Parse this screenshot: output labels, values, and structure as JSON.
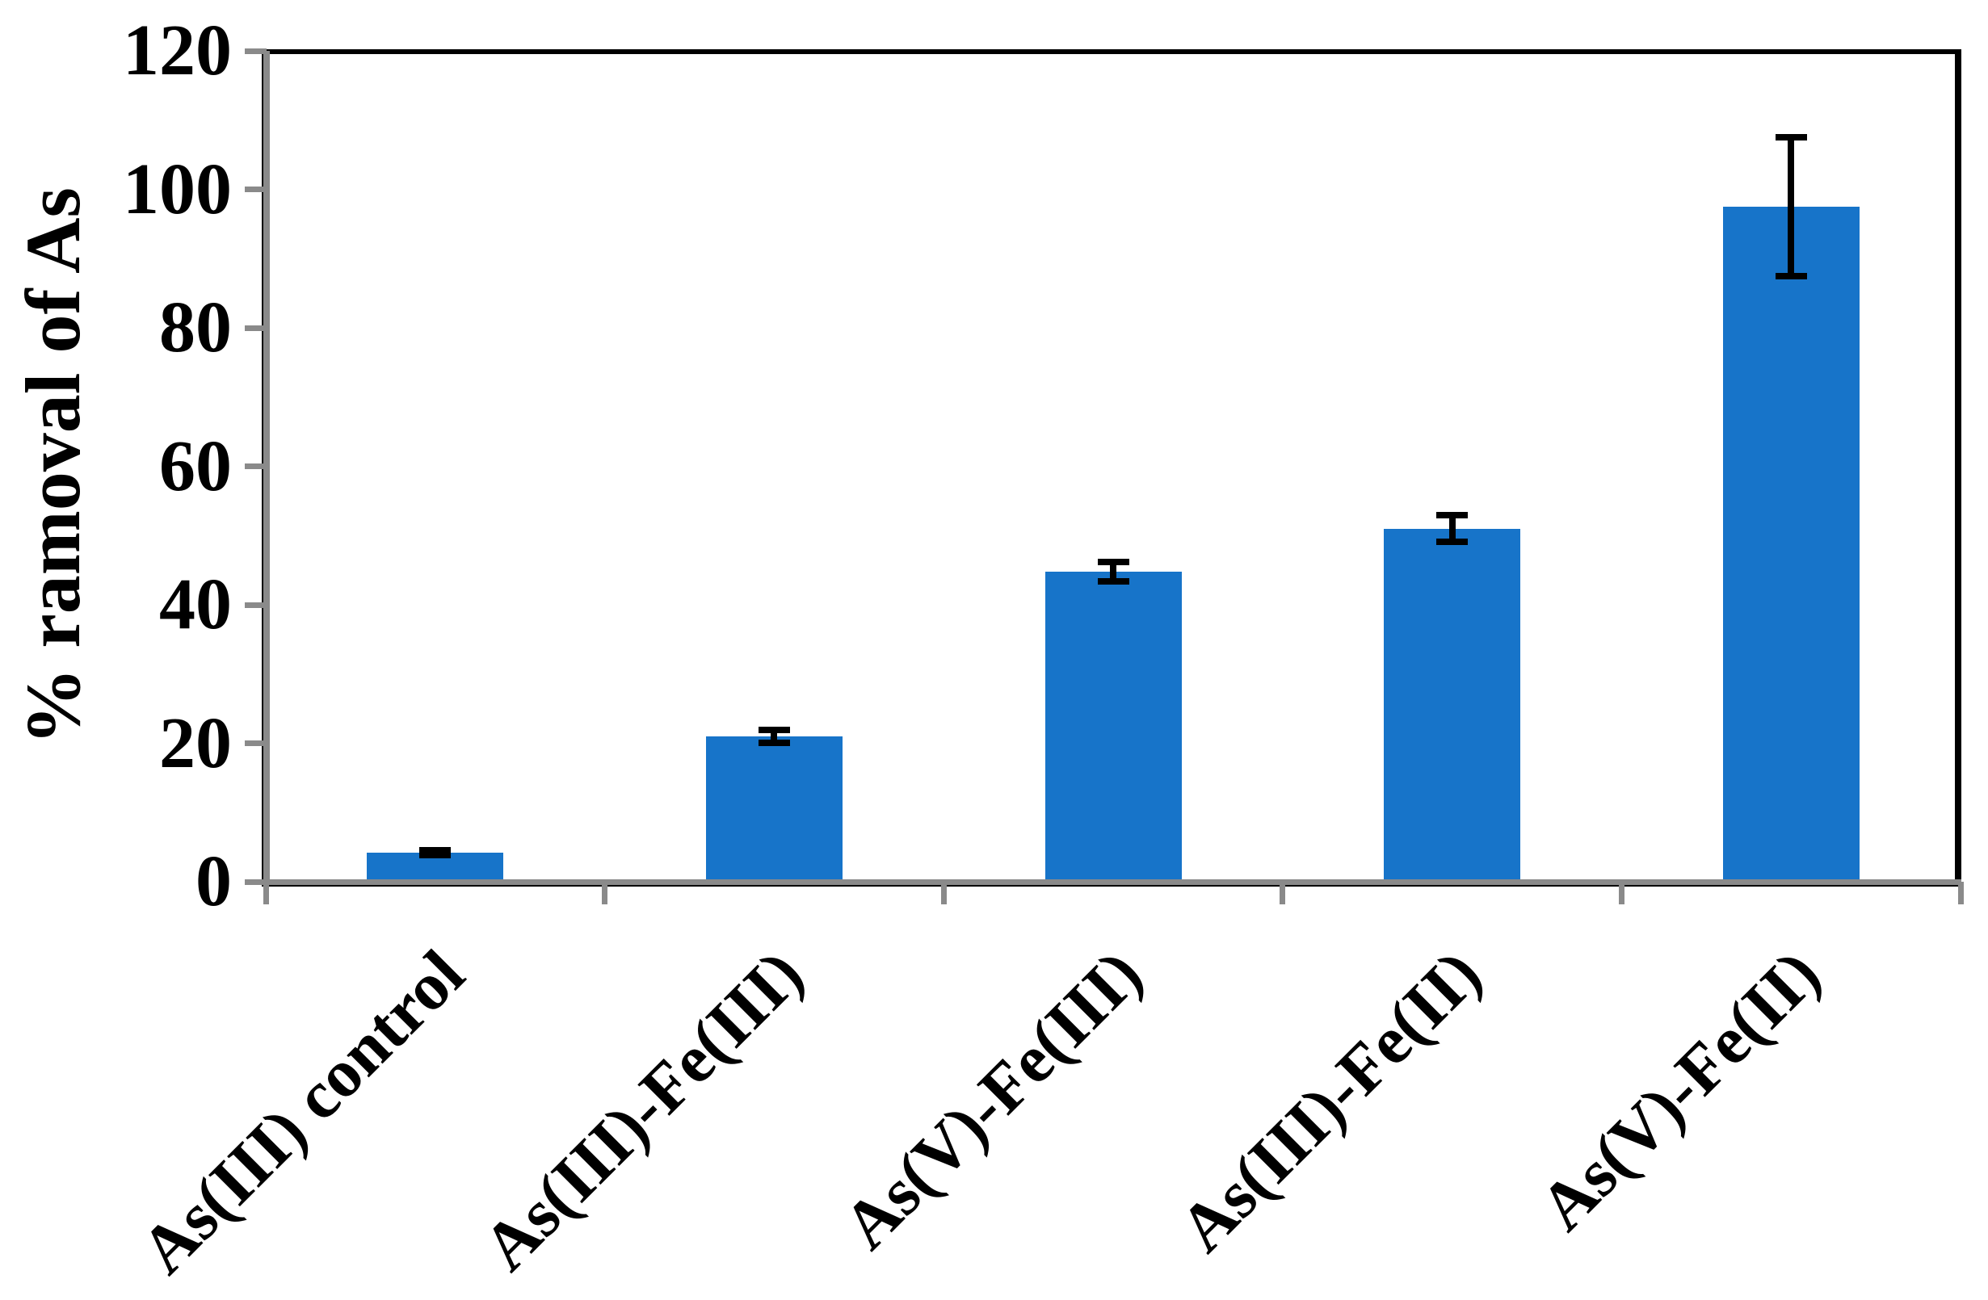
{
  "figure": {
    "background_color": "#ffffff",
    "frame_color": "#000000",
    "axis_color": "#8a8a8a"
  },
  "chart_data": {
    "type": "bar",
    "title": "",
    "xlabel": "",
    "ylabel": "% ramoval of As",
    "categories": [
      "As(III) control",
      "As(III)-Fe(III)",
      "As(V)-Fe(III)",
      "As(III)-Fe(II)",
      "As(V)-Fe(II)"
    ],
    "values": [
      4.2,
      21,
      44.8,
      51,
      97.5
    ],
    "error_bars": [
      0.4,
      0.9,
      1.4,
      1.9,
      10
    ],
    "ylim": [
      0,
      120
    ],
    "ytick_step": 20,
    "ytick_labels": [
      "0",
      "20",
      "40",
      "60",
      "80",
      "100",
      "120"
    ],
    "grid": false,
    "legend_position": "none",
    "bar_color": "#1774c9",
    "error_bar_color": "#000000",
    "category_label_rotation_deg": -45
  }
}
